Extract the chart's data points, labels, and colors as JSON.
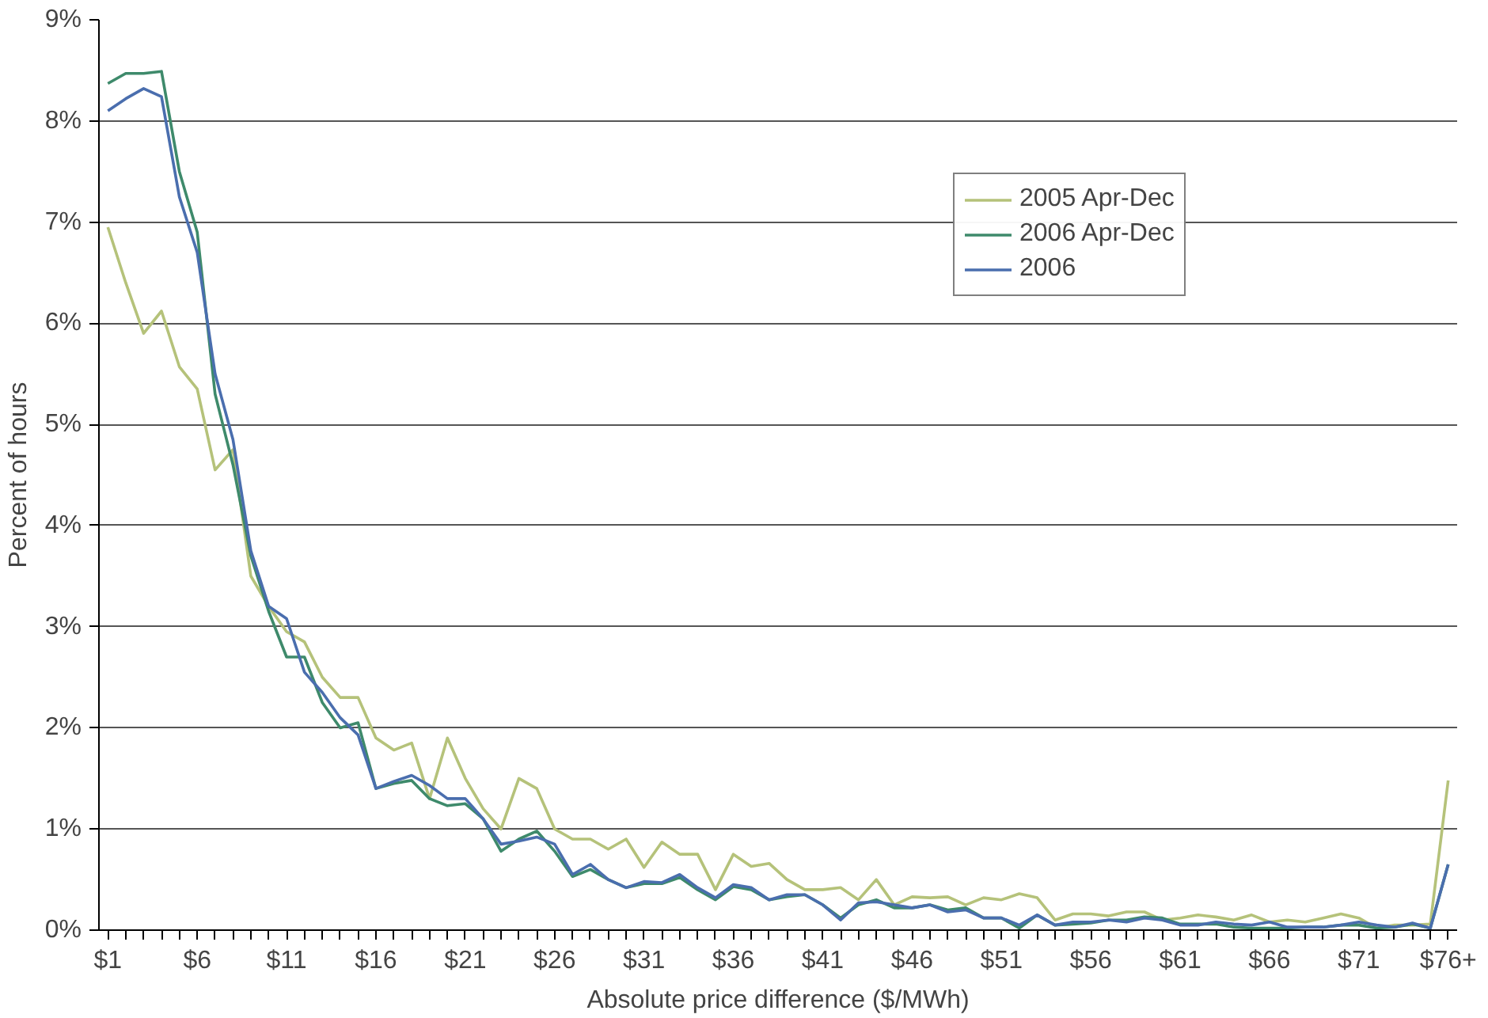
{
  "chart_data": {
    "type": "line",
    "xlabel": "Absolute price difference ($/MWh)",
    "ylabel": "Percent of hours",
    "categories": [
      "$1",
      null,
      null,
      null,
      null,
      "$6",
      null,
      null,
      null,
      null,
      "$11",
      null,
      null,
      null,
      null,
      "$16",
      null,
      null,
      null,
      null,
      "$21",
      null,
      null,
      null,
      null,
      "$26",
      null,
      null,
      null,
      null,
      "$31",
      null,
      null,
      null,
      null,
      "$36",
      null,
      null,
      null,
      null,
      "$41",
      null,
      null,
      null,
      null,
      "$46",
      null,
      null,
      null,
      null,
      "$51",
      null,
      null,
      null,
      null,
      "$56",
      null,
      null,
      null,
      null,
      "$61",
      null,
      null,
      null,
      null,
      "$66",
      null,
      null,
      null,
      null,
      "$71",
      null,
      null,
      null,
      null,
      "$76+"
    ],
    "series": [
      {
        "name": "2005 Apr-Dec",
        "color": "#b5c27a",
        "values": [
          6.95,
          6.4,
          5.9,
          6.12,
          5.57,
          5.35,
          4.55,
          4.75,
          3.5,
          3.2,
          2.95,
          2.85,
          2.5,
          2.3,
          2.3,
          1.9,
          1.78,
          1.85,
          1.3,
          1.9,
          1.5,
          1.2,
          1.0,
          1.5,
          1.4,
          1.0,
          0.9,
          0.9,
          0.8,
          0.9,
          0.62,
          0.87,
          0.75,
          0.75,
          0.4,
          0.75,
          0.63,
          0.66,
          0.5,
          0.4,
          0.4,
          0.42,
          0.3,
          0.5,
          0.25,
          0.33,
          0.32,
          0.33,
          0.25,
          0.32,
          0.3,
          0.36,
          0.32,
          0.1,
          0.16,
          0.16,
          0.14,
          0.18,
          0.18,
          0.1,
          0.12,
          0.15,
          0.13,
          0.1,
          0.15,
          0.08,
          0.1,
          0.08,
          0.12,
          0.16,
          0.12,
          0.02,
          0.05,
          0.05,
          0.06,
          1.48
        ]
      },
      {
        "name": "2006 Apr-Dec",
        "color": "#3e8a6b",
        "values": [
          8.37,
          8.47,
          8.47,
          8.49,
          7.5,
          6.9,
          5.3,
          4.6,
          3.7,
          3.15,
          2.7,
          2.7,
          2.25,
          2.0,
          2.05,
          1.4,
          1.45,
          1.48,
          1.3,
          1.23,
          1.25,
          1.1,
          0.78,
          0.9,
          0.98,
          0.78,
          0.53,
          0.6,
          0.5,
          0.42,
          0.46,
          0.46,
          0.52,
          0.4,
          0.3,
          0.43,
          0.4,
          0.3,
          0.33,
          0.35,
          0.25,
          0.12,
          0.25,
          0.3,
          0.22,
          0.22,
          0.25,
          0.2,
          0.22,
          0.12,
          0.12,
          0.02,
          0.15,
          0.05,
          0.06,
          0.07,
          0.1,
          0.1,
          0.13,
          0.12,
          0.06,
          0.06,
          0.06,
          0.03,
          0.02,
          0.02,
          0.02,
          0.03,
          0.03,
          0.05,
          0.05,
          0.02,
          0.03,
          0.06,
          0.02,
          0.65
        ]
      },
      {
        "name": "2006",
        "color": "#4a6eae",
        "values": [
          8.1,
          8.22,
          8.32,
          8.24,
          7.25,
          6.7,
          5.5,
          4.85,
          3.75,
          3.2,
          3.08,
          2.55,
          2.35,
          2.1,
          1.93,
          1.4,
          1.47,
          1.53,
          1.43,
          1.3,
          1.3,
          1.1,
          0.85,
          0.88,
          0.92,
          0.85,
          0.55,
          0.65,
          0.5,
          0.42,
          0.48,
          0.47,
          0.55,
          0.42,
          0.32,
          0.45,
          0.42,
          0.3,
          0.35,
          0.35,
          0.25,
          0.1,
          0.27,
          0.28,
          0.25,
          0.22,
          0.25,
          0.18,
          0.2,
          0.12,
          0.12,
          0.05,
          0.15,
          0.05,
          0.08,
          0.08,
          0.1,
          0.08,
          0.12,
          0.1,
          0.05,
          0.05,
          0.08,
          0.06,
          0.05,
          0.08,
          0.03,
          0.03,
          0.03,
          0.05,
          0.08,
          0.05,
          0.03,
          0.07,
          0.02,
          0.65
        ]
      }
    ],
    "ylim": [
      0,
      9
    ],
    "yticks": [
      {
        "value": 0,
        "label": "0%"
      },
      {
        "value": 1,
        "label": "1%"
      },
      {
        "value": 2,
        "label": "2%"
      },
      {
        "value": 3,
        "label": "3%"
      },
      {
        "value": 4,
        "label": "4%"
      },
      {
        "value": 5,
        "label": "5%"
      },
      {
        "value": 6,
        "label": "6%"
      },
      {
        "value": 7,
        "label": "7%"
      },
      {
        "value": 8,
        "label": "8%"
      },
      {
        "value": 9,
        "label": "9%"
      }
    ],
    "grid": "y",
    "legend": "top right",
    "marker": "none",
    "line_style": "solid"
  }
}
